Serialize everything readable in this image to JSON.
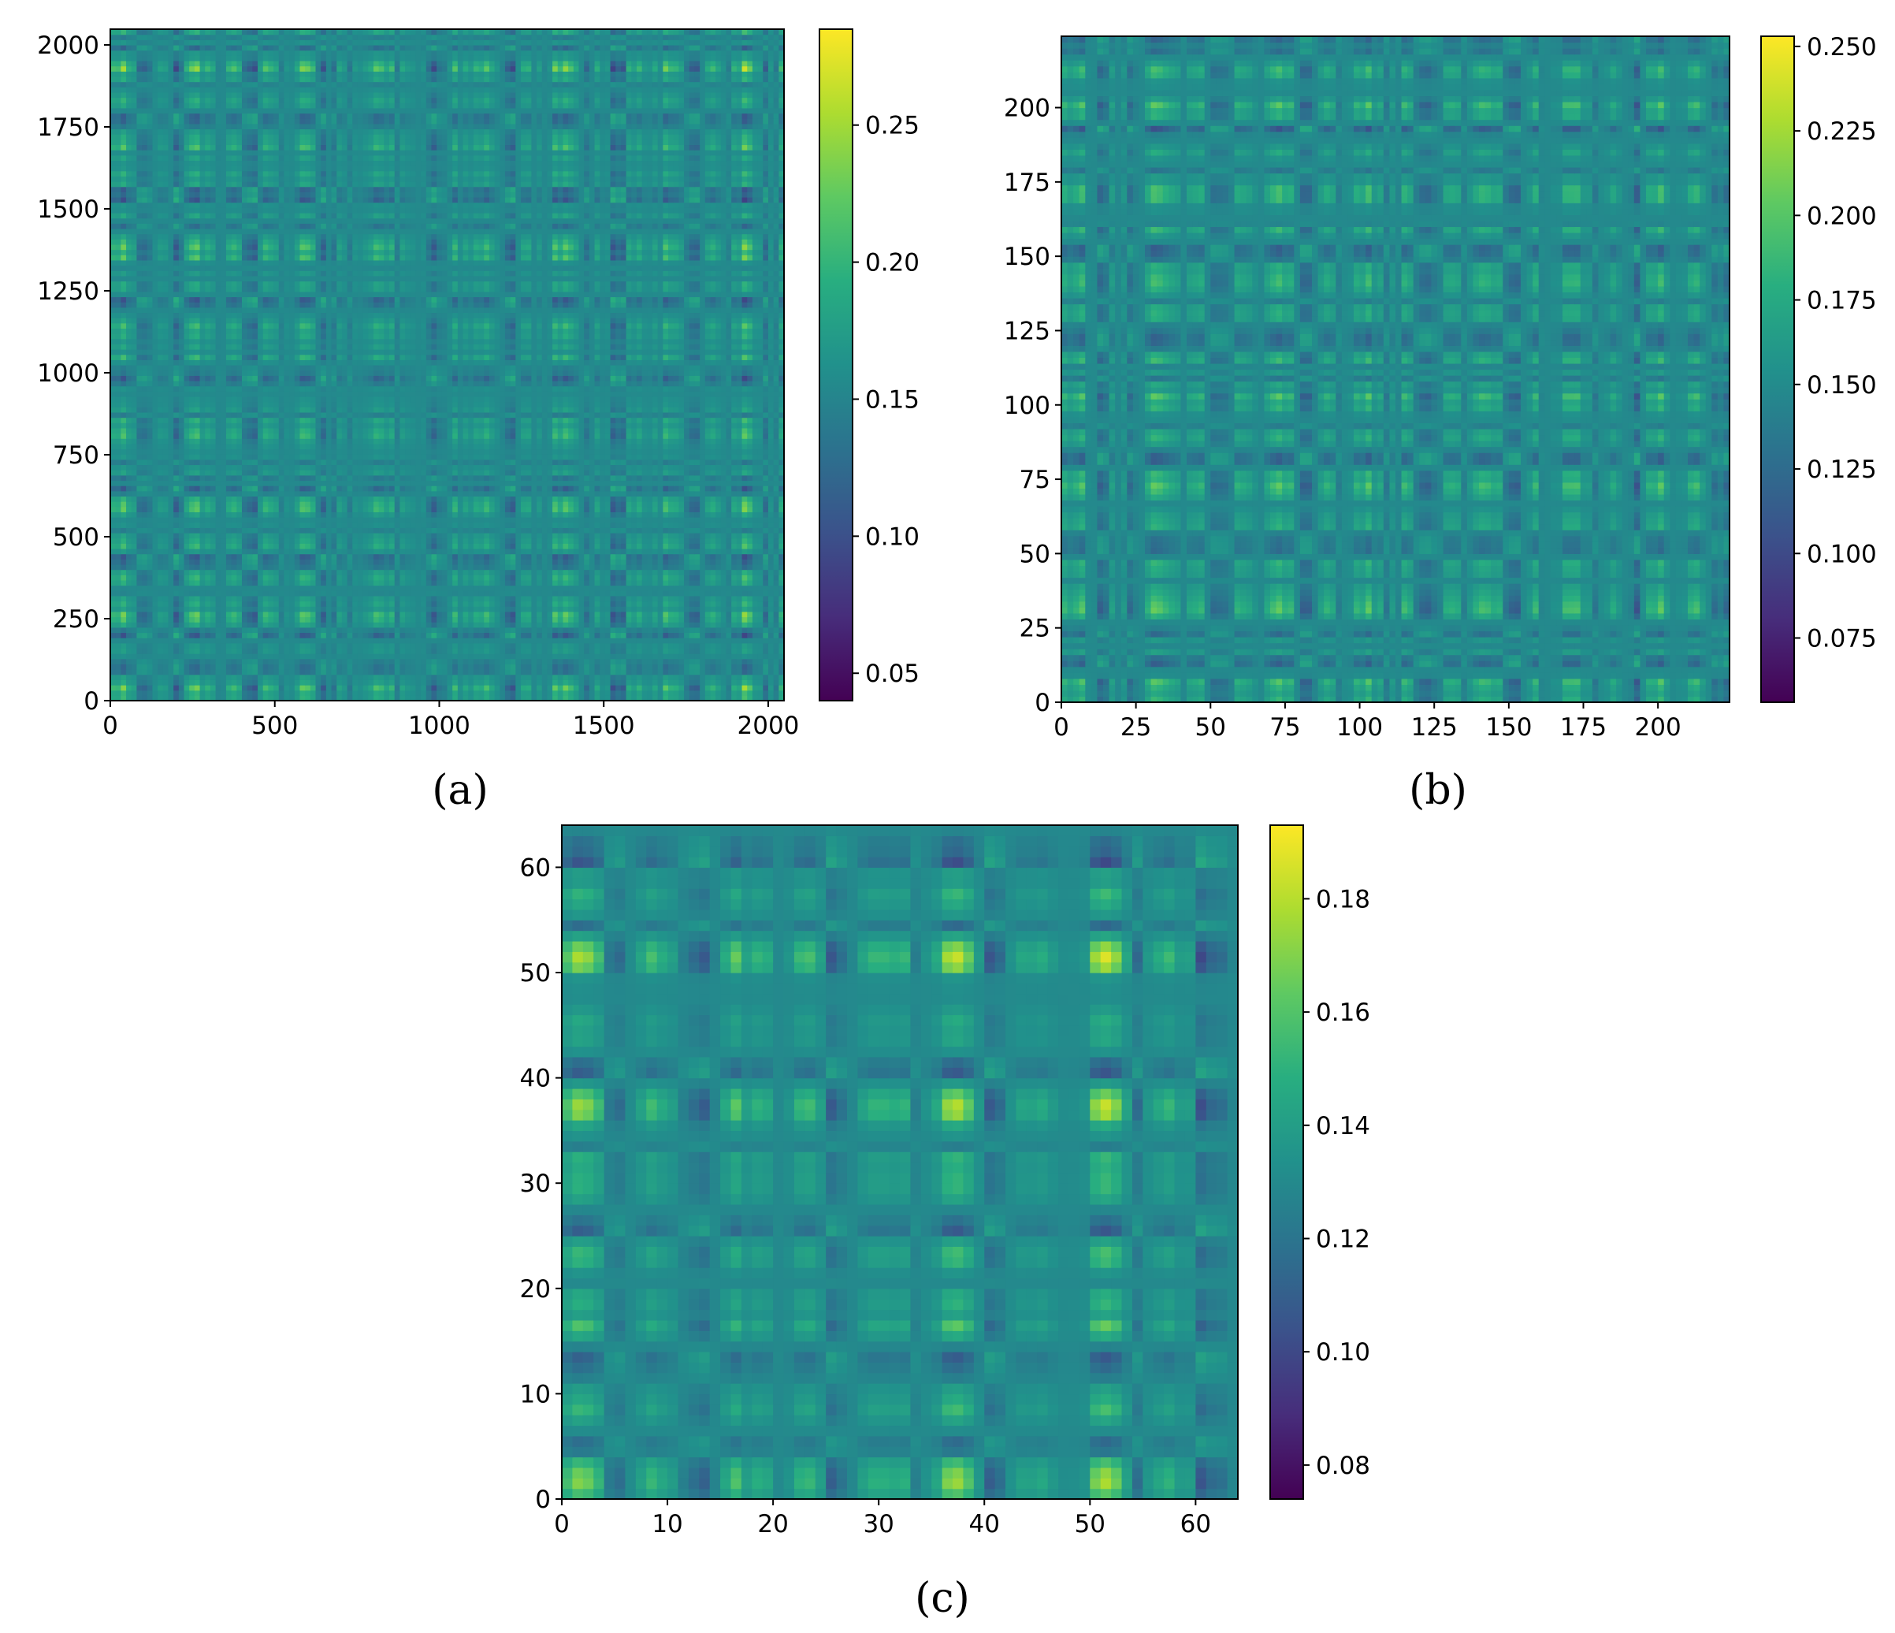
{
  "chart_data": [
    {
      "type": "heatmap",
      "panel_label": "a",
      "size": 2048,
      "xlim": [
        0,
        2048
      ],
      "ylim": [
        0,
        2048
      ],
      "xticks": [
        0,
        500,
        1000,
        1500,
        2000
      ],
      "xtick_labels": [
        "0",
        "500",
        "1000",
        "1500",
        "2000"
      ],
      "yticks": [
        0,
        250,
        500,
        750,
        1000,
        1250,
        1500,
        1750,
        2000
      ],
      "ytick_labels": [
        "0",
        "250",
        "500",
        "750",
        "1000",
        "1250",
        "1500",
        "1750",
        "2000"
      ],
      "colorbar": {
        "range": [
          0.04,
          0.285
        ],
        "ticks": [
          0.05,
          0.1,
          0.15,
          0.2,
          0.25
        ],
        "tick_labels": [
          "0.05",
          "0.10",
          "0.15",
          "0.20",
          "0.25"
        ]
      },
      "colormap": "viridis"
    },
    {
      "type": "heatmap",
      "panel_label": "b",
      "size": 224,
      "xlim": [
        0,
        224
      ],
      "ylim": [
        0,
        224
      ],
      "xticks": [
        0,
        25,
        50,
        75,
        100,
        125,
        150,
        175,
        200
      ],
      "xtick_labels": [
        "0",
        "25",
        "50",
        "75",
        "100",
        "125",
        "150",
        "175",
        "200"
      ],
      "yticks": [
        0,
        25,
        50,
        75,
        100,
        125,
        150,
        175,
        200
      ],
      "ytick_labels": [
        "0",
        "25",
        "50",
        "75",
        "100",
        "125",
        "150",
        "175",
        "200"
      ],
      "colorbar": {
        "range": [
          0.056,
          0.253
        ],
        "ticks": [
          0.075,
          0.1,
          0.125,
          0.15,
          0.175,
          0.2,
          0.225,
          0.25
        ],
        "tick_labels": [
          "0.075",
          "0.100",
          "0.125",
          "0.150",
          "0.175",
          "0.200",
          "0.225",
          "0.250"
        ]
      },
      "colormap": "viridis"
    },
    {
      "type": "heatmap",
      "panel_label": "c",
      "size": 64,
      "xlim": [
        0,
        64
      ],
      "ylim": [
        0,
        64
      ],
      "xticks": [
        0,
        10,
        20,
        30,
        40,
        50,
        60
      ],
      "xtick_labels": [
        "0",
        "10",
        "20",
        "30",
        "40",
        "50",
        "60"
      ],
      "yticks": [
        0,
        10,
        20,
        30,
        40,
        50,
        60
      ],
      "ytick_labels": [
        "0",
        "10",
        "20",
        "30",
        "40",
        "50",
        "60"
      ],
      "colorbar": {
        "range": [
          0.074,
          0.193
        ],
        "ticks": [
          0.08,
          0.1,
          0.12,
          0.14,
          0.16,
          0.18
        ],
        "tick_labels": [
          "0.08",
          "0.10",
          "0.12",
          "0.14",
          "0.16",
          "0.18"
        ]
      },
      "colormap": "viridis"
    }
  ],
  "labels": {
    "a": "(a)",
    "b": "(b)",
    "c": "(c)"
  }
}
